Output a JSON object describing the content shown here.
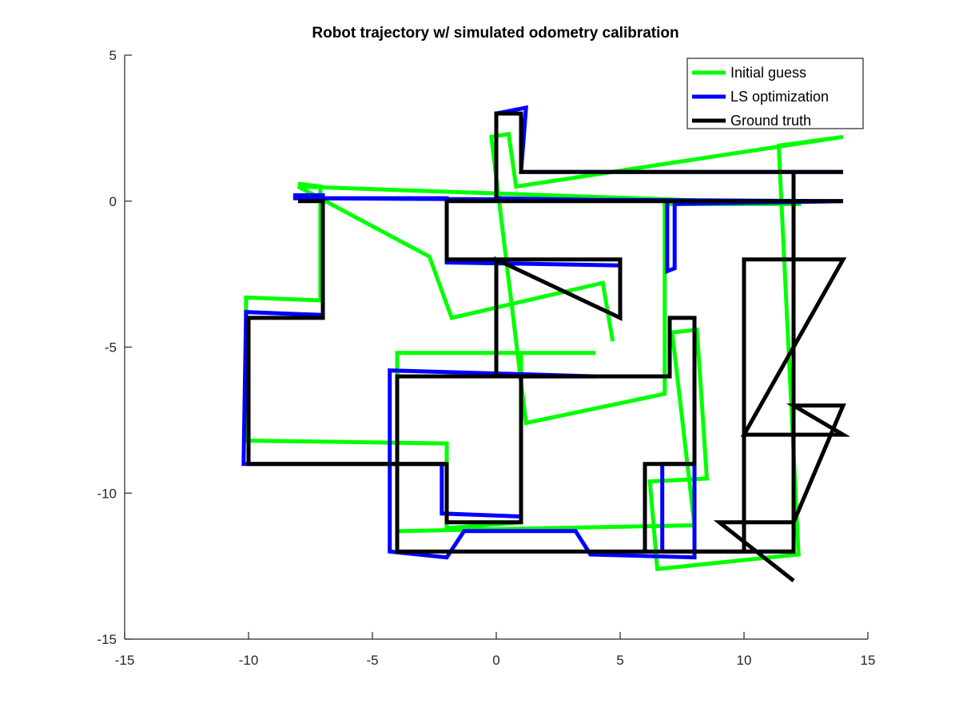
{
  "chart_data": {
    "type": "line",
    "title": "Robot trajectory w/ simulated odometry calibration",
    "xlabel": "",
    "ylabel": "",
    "xlim": [
      -15,
      15
    ],
    "ylim": [
      -15,
      5
    ],
    "xticks": [
      -15,
      -10,
      -5,
      0,
      5,
      10,
      15
    ],
    "yticks": [
      -15,
      -10,
      -5,
      0,
      5
    ],
    "grid": false,
    "legend_position": "top-right",
    "series": [
      {
        "name": "Initial guess",
        "color": "#00ff00",
        "points": [
          [
            -8,
            0.6
          ],
          [
            -7.1,
            0.5
          ],
          [
            -7.1,
            -3.4
          ],
          [
            -10.1,
            -3.3
          ],
          [
            -10.1,
            -8.2
          ],
          [
            -2,
            -8.3
          ],
          [
            -2,
            -11.2
          ],
          [
            1,
            -11
          ],
          [
            1,
            -5.2
          ],
          [
            4,
            -5.2
          ],
          [
            4,
            -5.2
          ],
          [
            -4,
            -5.2
          ],
          [
            -4,
            -11.3
          ],
          [
            8,
            -11.1
          ],
          [
            7.1,
            -4.5
          ],
          [
            8.1,
            -4.4
          ],
          [
            8.5,
            -9.5
          ],
          [
            6.2,
            -9.6
          ],
          [
            6.5,
            -12.6
          ],
          [
            12.2,
            -12.1
          ],
          [
            11.4,
            1.9
          ],
          [
            14,
            2.2
          ],
          [
            0.8,
            0.5
          ],
          [
            0.5,
            2.3
          ],
          [
            -0.2,
            2.2
          ],
          [
            1.2,
            -7.6
          ],
          [
            6.8,
            -6.6
          ],
          [
            6.8,
            -0.1
          ],
          [
            12.3,
            -0.1
          ],
          [
            -8,
            0.5
          ],
          [
            -2.7,
            -1.9
          ],
          [
            -1.8,
            -4
          ],
          [
            4.3,
            -2.8
          ],
          [
            4.7,
            -4.8
          ]
        ]
      },
      {
        "name": "LS optimization",
        "color": "#0000ff",
        "points": [
          [
            -8.2,
            0.2
          ],
          [
            -7,
            0.2
          ],
          [
            -7,
            -3.9
          ],
          [
            -10.1,
            -3.8
          ],
          [
            -10.2,
            -9
          ],
          [
            -2.2,
            -9
          ],
          [
            -2.2,
            -10.7
          ],
          [
            1,
            -10.8
          ],
          [
            1,
            -6
          ],
          [
            4,
            -6
          ],
          [
            -4.3,
            -5.8
          ],
          [
            -4.3,
            -12
          ],
          [
            -2,
            -12.2
          ],
          [
            -1.3,
            -11.3
          ],
          [
            3.2,
            -11.3
          ],
          [
            3.8,
            -12.1
          ],
          [
            8,
            -12.2
          ],
          [
            8,
            -9
          ],
          [
            6.7,
            -9
          ],
          [
            6.7,
            -12
          ],
          [
            12,
            -12
          ],
          [
            12,
            1
          ],
          [
            14,
            1
          ],
          [
            1,
            1
          ],
          [
            1.2,
            3.2
          ],
          [
            0,
            3
          ],
          [
            0,
            0.1
          ],
          [
            6.9,
            0
          ],
          [
            6.9,
            -2.4
          ],
          [
            7.2,
            -2.3
          ],
          [
            7.2,
            -0.1
          ],
          [
            14,
            0
          ],
          [
            -8.2,
            0.1
          ],
          [
            -2,
            0.1
          ],
          [
            -2,
            -2.1
          ],
          [
            5,
            -2.2
          ],
          [
            5,
            -4
          ]
        ]
      },
      {
        "name": "Ground truth",
        "color": "#000000",
        "points": [
          [
            -8,
            0
          ],
          [
            -7,
            0
          ],
          [
            -7,
            -4
          ],
          [
            -10,
            -4
          ],
          [
            -10,
            -9
          ],
          [
            -2,
            -9
          ],
          [
            -2,
            -11
          ],
          [
            1,
            -11
          ],
          [
            1,
            -6
          ],
          [
            -4,
            -6
          ],
          [
            -4,
            -12
          ],
          [
            12,
            -12
          ],
          [
            12,
            1
          ],
          [
            14,
            1
          ],
          [
            1,
            1
          ],
          [
            1,
            3
          ],
          [
            0,
            3
          ],
          [
            0,
            0
          ],
          [
            14,
            0
          ],
          [
            -2,
            0
          ],
          [
            -2,
            -2
          ],
          [
            5,
            -2
          ],
          [
            5,
            -4
          ],
          [
            0,
            -2
          ],
          [
            0,
            -6
          ],
          [
            7,
            -6
          ],
          [
            7,
            -4
          ],
          [
            8,
            -4
          ],
          [
            8,
            -9
          ],
          [
            6,
            -9
          ],
          [
            6,
            -12
          ],
          [
            10,
            -12
          ],
          [
            10,
            -2
          ],
          [
            14,
            -2
          ],
          [
            10,
            -8
          ],
          [
            14,
            -8
          ],
          [
            12,
            -7
          ],
          [
            14,
            -7
          ],
          [
            12,
            -11
          ],
          [
            9,
            -11
          ],
          [
            12,
            -13
          ]
        ]
      }
    ],
    "annotations": []
  }
}
